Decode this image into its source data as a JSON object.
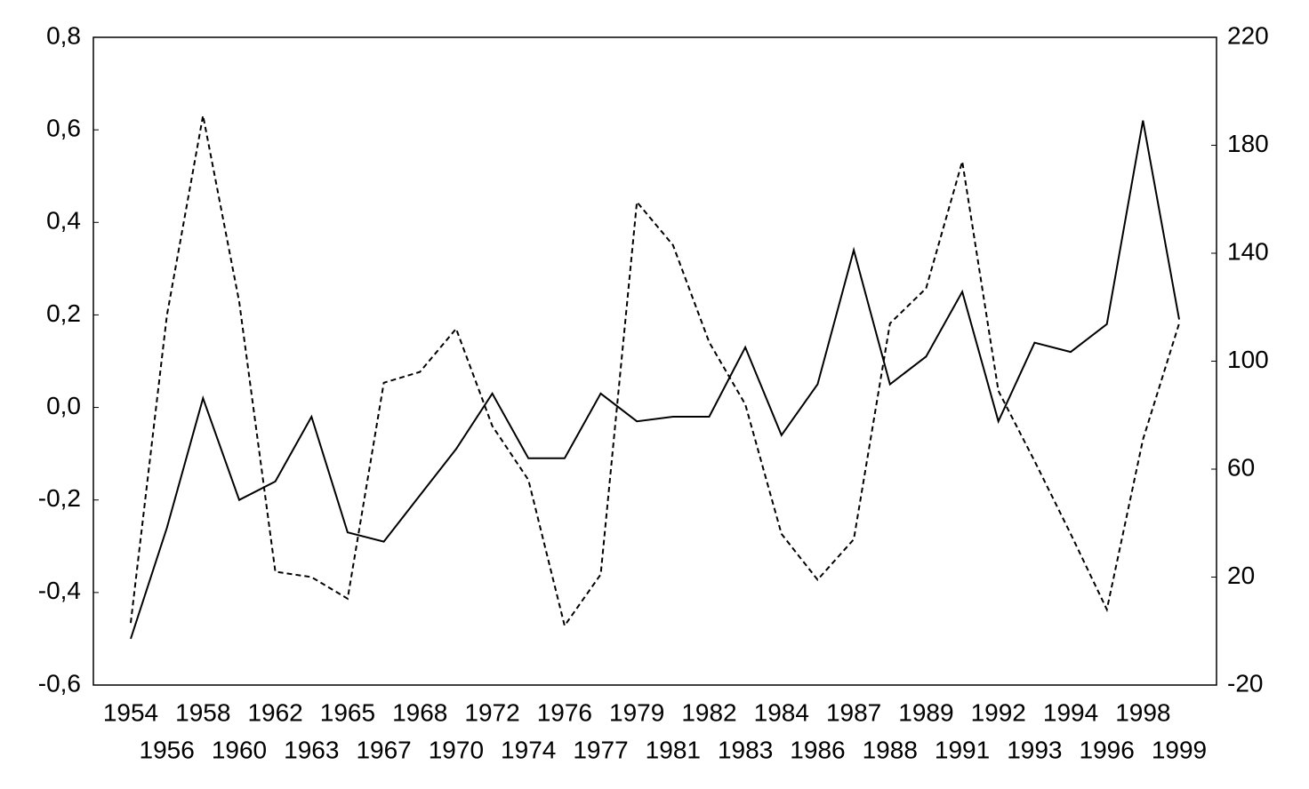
{
  "chart_data": {
    "type": "line",
    "categories": [
      "1954",
      "1956",
      "1958",
      "1960",
      "1962",
      "1963",
      "1965",
      "1967",
      "1968",
      "1970",
      "1972",
      "1974",
      "1976",
      "1977",
      "1979",
      "1981",
      "1982",
      "1983",
      "1984",
      "1986",
      "1987",
      "1988",
      "1989",
      "1991",
      "1992",
      "1993",
      "1994",
      "1996",
      "1998",
      "1999"
    ],
    "series": [
      {
        "color": "#000000",
        "line_style": "solid",
        "values": [
          -0.5,
          -0.26,
          0.02,
          -0.2,
          -0.16,
          -0.02,
          -0.27,
          -0.29,
          -0.19,
          -0.09,
          0.03,
          -0.11,
          -0.11,
          0.03,
          -0.03,
          -0.02,
          -0.02,
          0.13,
          -0.06,
          0.05,
          0.34,
          0.05,
          0.11,
          0.25,
          -0.03,
          0.14,
          0.12,
          0.18,
          0.62,
          0.19
        ]
      },
      {
        "color": "#000000",
        "line_style": "dashed",
        "axis": "y2",
        "values": [
          3,
          117,
          191,
          122,
          22,
          20,
          12,
          92,
          96,
          112,
          76,
          56,
          2,
          21,
          159,
          143,
          107,
          84,
          36,
          19,
          34,
          114,
          127,
          174,
          89,
          63,
          36,
          8,
          71,
          114
        ]
      }
    ],
    "ylim": [
      -0.6,
      0.8
    ],
    "yticks": [
      {
        "value": -0.6,
        "label": "-0,6"
      },
      {
        "value": -0.4,
        "label": "-0,4"
      },
      {
        "value": -0.2,
        "label": "-0,2"
      },
      {
        "value": 0,
        "label": "0,0"
      },
      {
        "value": 0.2,
        "label": "0,2"
      },
      {
        "value": 0.4,
        "label": "0,4"
      },
      {
        "value": 0.6,
        "label": "0,6"
      },
      {
        "value": 0.8,
        "label": "0,8"
      }
    ],
    "y2lim": [
      -20,
      220
    ],
    "y2ticks": [
      -20,
      20,
      60,
      100,
      140,
      180,
      220
    ],
    "grid": false
  }
}
